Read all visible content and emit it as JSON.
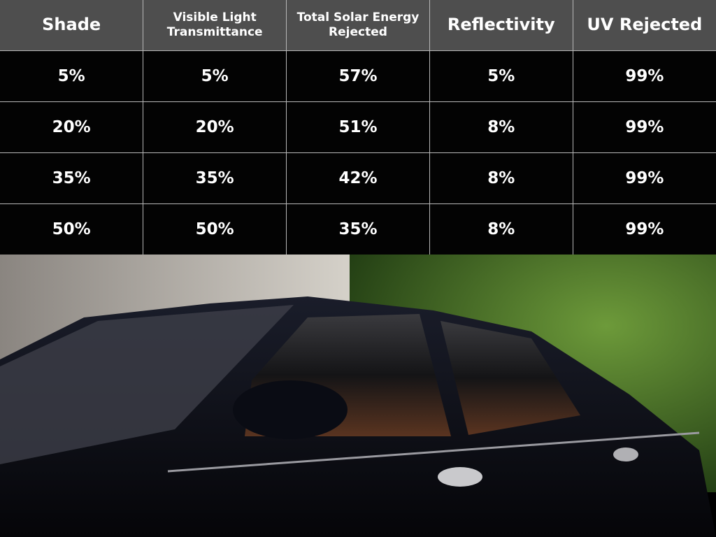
{
  "table": {
    "headers": [
      "Shade",
      "Visible Light Transmittance",
      "Total Solar Energy Rejected",
      "Reflectivity",
      "UV Rejected"
    ],
    "rows": [
      [
        "5%",
        "5%",
        "57%",
        "5%",
        "99%"
      ],
      [
        "20%",
        "20%",
        "51%",
        "8%",
        "99%"
      ],
      [
        "35%",
        "35%",
        "42%",
        "8%",
        "99%"
      ],
      [
        "50%",
        "50%",
        "35%",
        "8%",
        "99%"
      ]
    ]
  },
  "colors": {
    "header_bg": "#4e4e4e",
    "body_bg": "#030303",
    "grid": "#b8b8b8"
  }
}
